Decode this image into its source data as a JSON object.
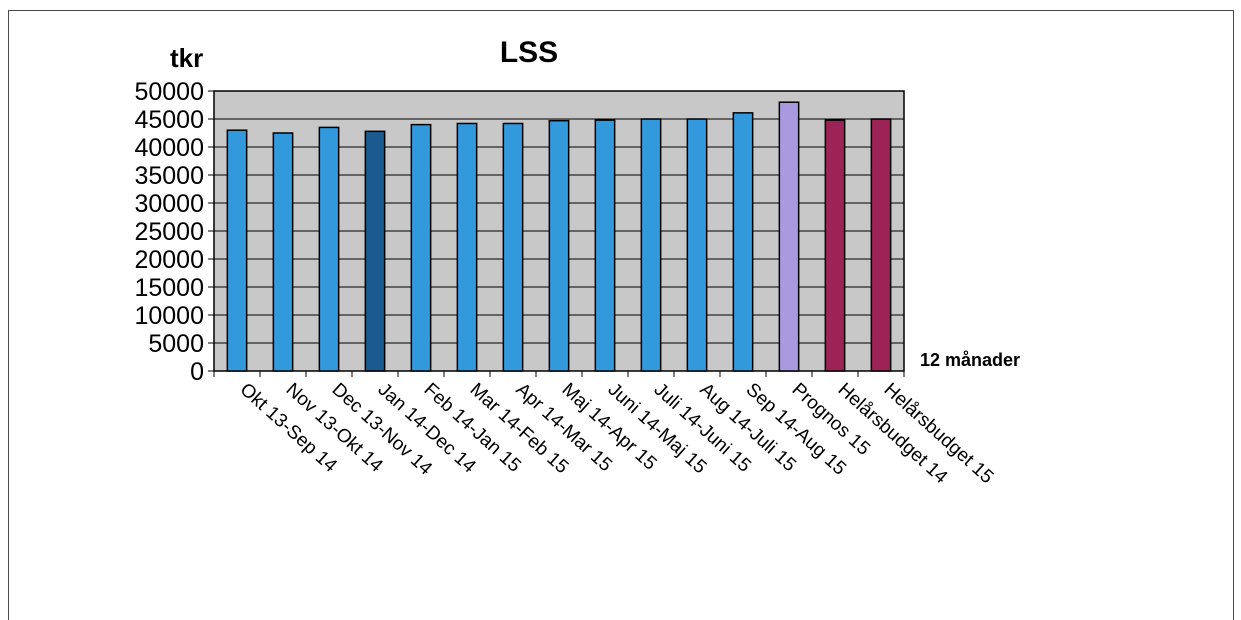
{
  "chart_data": {
    "type": "bar",
    "title": "LSS",
    "ylabel": "tkr",
    "xlabel": "12 månader",
    "ylim": [
      0,
      50000
    ],
    "yticks": [
      0,
      5000,
      10000,
      15000,
      20000,
      25000,
      30000,
      35000,
      40000,
      45000,
      50000
    ],
    "grid": true,
    "categories": [
      "Okt 13-Sep 14",
      "Nov 13-Okt 14",
      "Dec 13-Nov 14",
      "Jan 14-Dec 14",
      "Feb 14-Jan 15",
      "Mar 14-Feb 15",
      "Apr 14-Mar 15",
      "Maj 14-Apr 15",
      "Juni 14-Maj 15",
      "Juli 14-Juni 15",
      "Aug 14-Juli 15",
      "Sep 14-Aug 15",
      "Prognos 15",
      "Helårsbudget 14",
      "Helårsbudget 15"
    ],
    "values": [
      43000,
      42500,
      43500,
      42800,
      44000,
      44200,
      44200,
      44700,
      44800,
      45000,
      45000,
      46100,
      48000,
      44800,
      45000
    ],
    "colors": [
      "#3399dd",
      "#3399dd",
      "#3399dd",
      "#1a5a8e",
      "#3399dd",
      "#3399dd",
      "#3399dd",
      "#3399dd",
      "#3399dd",
      "#3399dd",
      "#3399dd",
      "#3399dd",
      "#a99ae0",
      "#9b2355",
      "#9b2355"
    ],
    "plot_background": "#c8c8c8"
  }
}
